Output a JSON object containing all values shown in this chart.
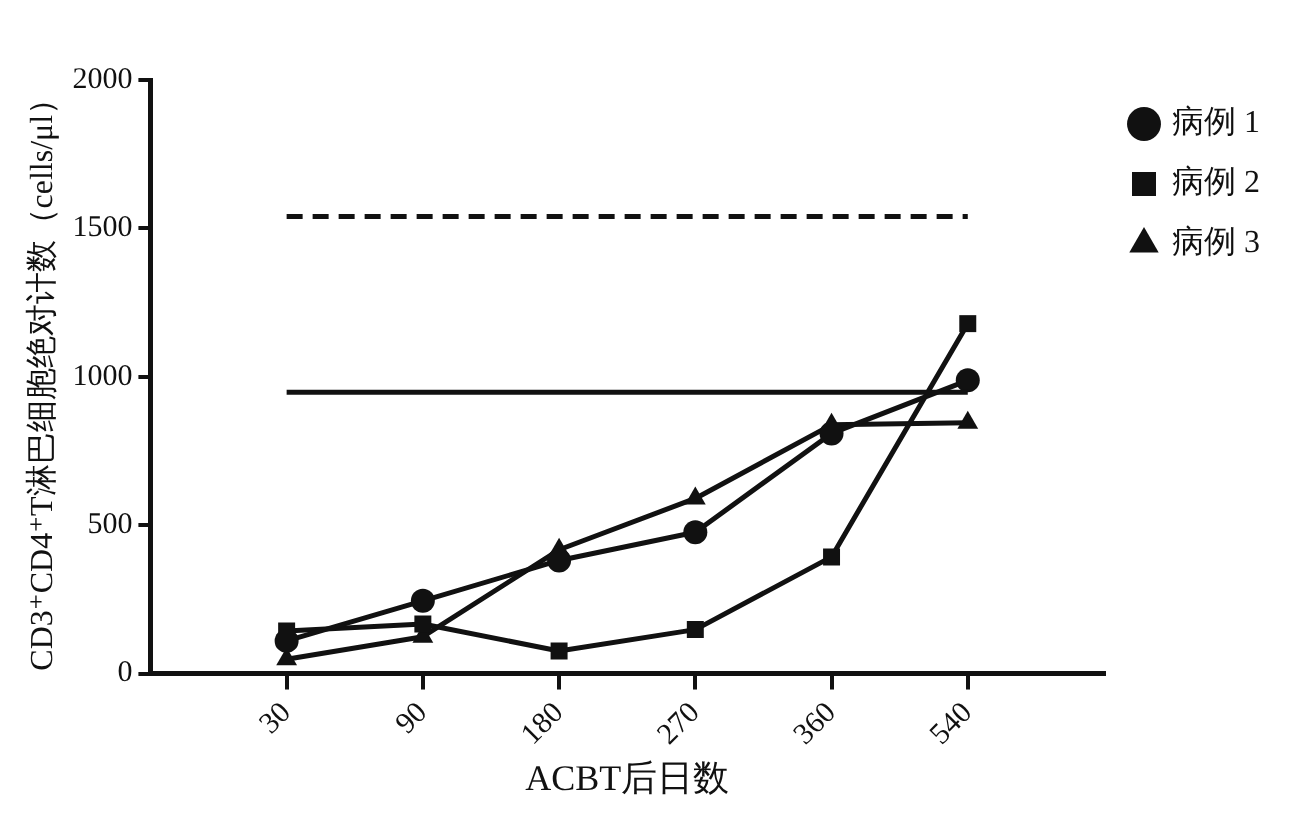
{
  "chart_data": {
    "type": "line",
    "xlabel": "ACBT后日数",
    "ylabel": "CD3⁺CD4⁺T淋巴细胞绝对计数（cells/μl）",
    "categories": [
      "30",
      "90",
      "180",
      "270",
      "360",
      "540"
    ],
    "series": [
      {
        "name": "病例 1",
        "color": "#111111",
        "marker": "circle",
        "values": [
          110,
          245,
          381,
          476,
          809,
          988
        ]
      },
      {
        "name": "病例 2",
        "color": "#111111",
        "marker": "square",
        "values": [
          143,
          167,
          76,
          148,
          393,
          1179
        ]
      },
      {
        "name": "病例 3",
        "color": "#111111",
        "marker": "triangle",
        "values": [
          48,
          124,
          417,
          590,
          838,
          845
        ]
      }
    ],
    "ref_lines": [
      {
        "axis": "y",
        "value": 1540,
        "line_style": "dashed",
        "color": "#111111"
      },
      {
        "axis": "y",
        "value": 948,
        "line_style": "solid",
        "color": "#111111"
      }
    ],
    "ylim": [
      0,
      2000
    ],
    "yticks": [
      0,
      500,
      1000,
      1500,
      2000
    ],
    "grid": false,
    "legend": "top right"
  }
}
